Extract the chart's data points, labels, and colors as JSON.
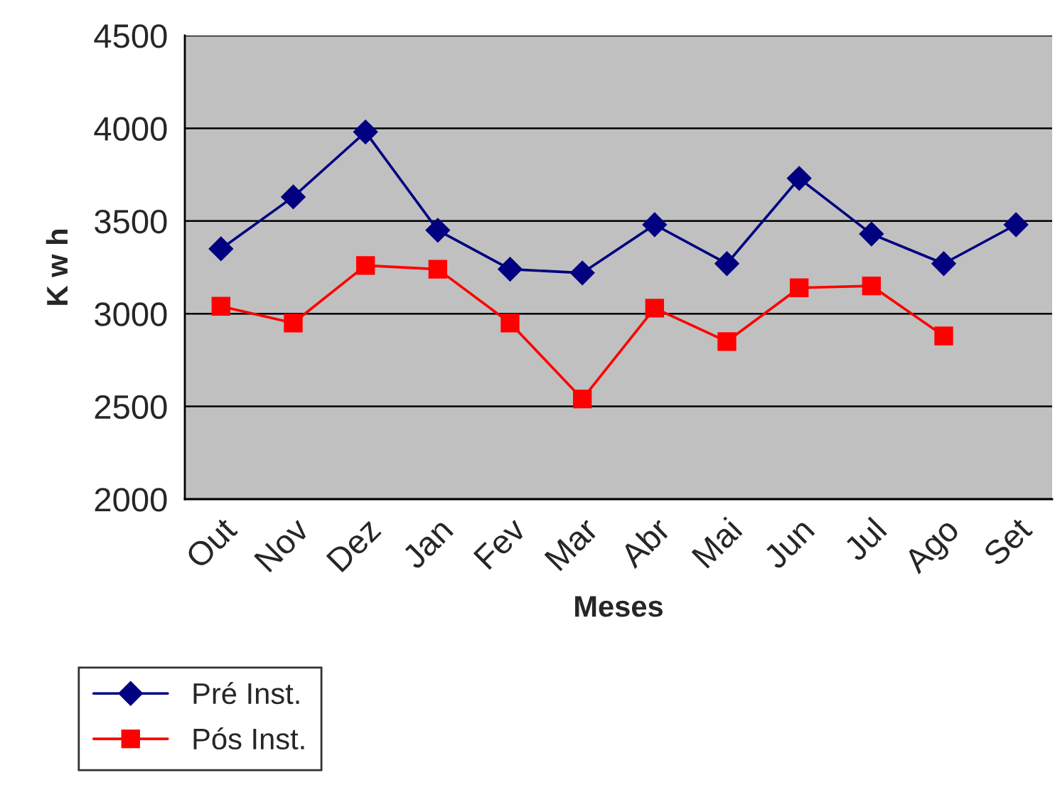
{
  "chart_data": {
    "type": "line",
    "xlabel": "Meses",
    "ylabel": "K w h",
    "categories": [
      "Out",
      "Nov",
      "Dez",
      "Jan",
      "Fev",
      "Mar",
      "Abr",
      "Mai",
      "Jun",
      "Jul",
      "Ago",
      "Set"
    ],
    "series": [
      {
        "name": "Pré Inst.",
        "color": "#000080",
        "marker": "diamond",
        "values": [
          3350,
          3630,
          3980,
          3450,
          3240,
          3220,
          3480,
          3270,
          3730,
          3430,
          3270,
          3480
        ]
      },
      {
        "name": "Pós Inst.",
        "color": "#ff0000",
        "marker": "square",
        "values": [
          3040,
          2950,
          3260,
          3240,
          2950,
          2540,
          3030,
          2850,
          3140,
          3150,
          2880,
          null
        ]
      }
    ],
    "ylim": [
      2000,
      4500
    ],
    "yticks": [
      2000,
      2500,
      3000,
      3500,
      4000,
      4500
    ],
    "grid": "y",
    "legend": "bottom left",
    "line_style": "solid"
  }
}
